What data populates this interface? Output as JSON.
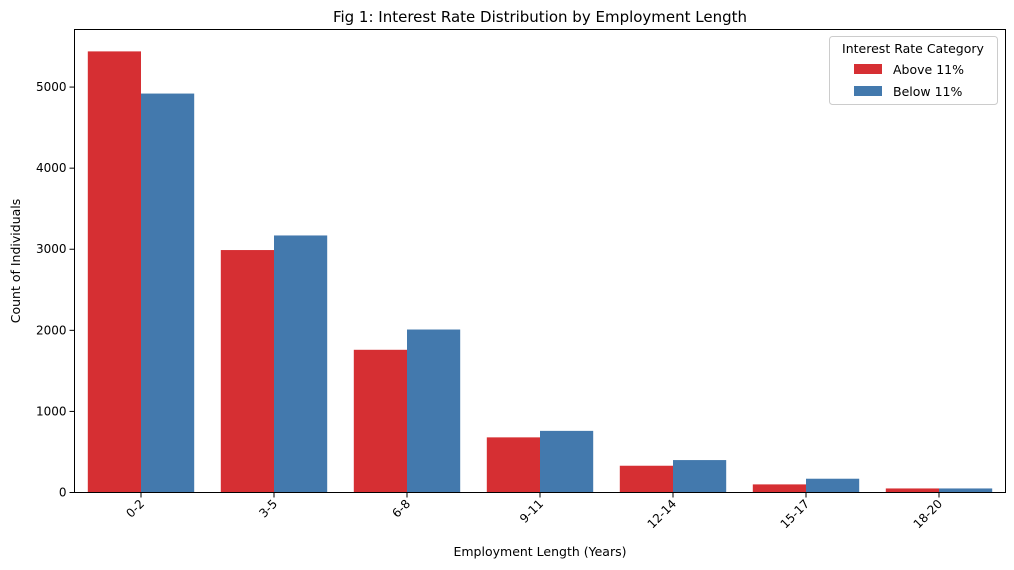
{
  "chart_data": {
    "type": "bar",
    "title": "Fig 1: Interest Rate Distribution by Employment Length",
    "xlabel": "Employment Length (Years)",
    "ylabel": "Count of Individuals",
    "categories": [
      "0-2",
      "3-5",
      "6-8",
      "9-11",
      "12-14",
      "15-17",
      "18-20"
    ],
    "series": [
      {
        "name": "Above 11%",
        "color": "#d62f33",
        "values": [
          5440,
          2990,
          1760,
          680,
          330,
          100,
          50
        ]
      },
      {
        "name": "Below 11%",
        "color": "#4379ad",
        "values": [
          4920,
          3170,
          2010,
          760,
          400,
          170,
          50
        ]
      }
    ],
    "ylim": [
      0,
      5710
    ],
    "yticks": [
      0,
      1000,
      2000,
      3000,
      4000,
      5000
    ],
    "grid": false,
    "legend": {
      "title": "Interest Rate Category",
      "placement": "top-right"
    },
    "xtick_rotation": -45
  }
}
